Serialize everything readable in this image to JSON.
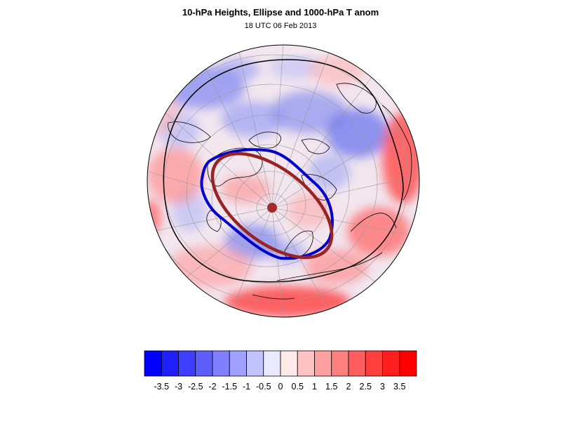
{
  "title": "10-hPa Heights, Ellipse and 1000-hPa T anom",
  "subtitle": "18 UTC 06 Feb 2013",
  "colorbar": {
    "labels": [
      "-3.5",
      "-3",
      "-2.5",
      "-2",
      "-1.5",
      "-1",
      "-0.5",
      "0",
      "0.5",
      "1",
      "1.5",
      "2",
      "2.5",
      "3",
      "3.5"
    ],
    "min": -4,
    "max": 4,
    "step": 0.5,
    "negative_color": "#0000ff",
    "positive_color": "#ff0000",
    "neutral_color": "#ffffff"
  },
  "map": {
    "projection": "polar stereographic",
    "contour_colors": {
      "height_contour": "#0000cc",
      "ellipse": "#992222",
      "ellipse_center": "#a52a2a",
      "coastline": "#000000"
    }
  }
}
